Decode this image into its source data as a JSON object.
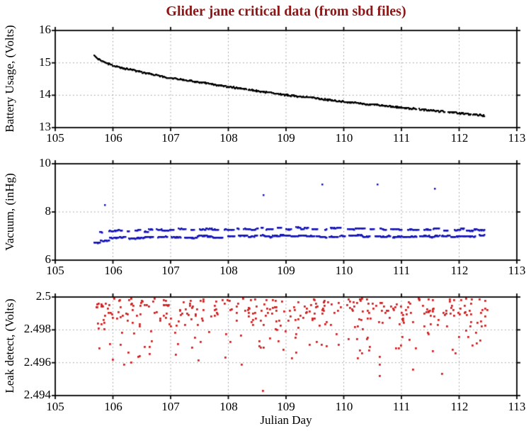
{
  "title": {
    "text": "Glider jane critical data (from sbd files)",
    "color": "#8b1717"
  },
  "x_axis": {
    "label": "Julian Day",
    "tick_labels": [
      "105",
      "106",
      "107",
      "108",
      "109",
      "110",
      "111",
      "112",
      "113"
    ],
    "range": [
      105,
      113
    ]
  },
  "style": {
    "background": "#ffffff",
    "axis_color": "#000000",
    "grid_color": "#999999",
    "text_color": "#000000"
  },
  "chart_data": [
    {
      "type": "scatter",
      "name": "battery-usage",
      "ylabel": "Battery Usage, (Volts)",
      "y_tick_labels": [
        "16",
        "15",
        "14",
        "13"
      ],
      "y_ticks": [
        16,
        15,
        14,
        13
      ],
      "ylim": [
        13,
        16
      ],
      "xlim": [
        105,
        113
      ],
      "x_grid": [
        106,
        107,
        108,
        109,
        110,
        111,
        112
      ],
      "y_grid": [
        14,
        15
      ],
      "grid": true,
      "legend": "none",
      "marker_color": "#000000",
      "marker_size": 2.2,
      "seed": 7,
      "series": [
        {
          "name": "battery-voltage",
          "style": "runs",
          "x_start": 105.68,
          "x_end": 112.45,
          "step": 0.012,
          "run_len": [
            6,
            14
          ],
          "gap_prob": 0.1,
          "gap_len": [
            2,
            5
          ],
          "flat": false,
          "noise": 0.022,
          "anchors": [
            [
              105.68,
              15.22
            ],
            [
              105.75,
              15.12
            ],
            [
              105.85,
              15.02
            ],
            [
              106,
              14.92
            ],
            [
              106.2,
              14.83
            ],
            [
              106.4,
              14.75
            ],
            [
              106.6,
              14.67
            ],
            [
              106.8,
              14.6
            ],
            [
              107,
              14.53
            ],
            [
              107.3,
              14.45
            ],
            [
              107.6,
              14.37
            ],
            [
              108,
              14.26
            ],
            [
              108.4,
              14.16
            ],
            [
              108.8,
              14.06
            ],
            [
              109,
              14.0
            ],
            [
              109.4,
              13.93
            ],
            [
              109.8,
              13.84
            ],
            [
              110.2,
              13.76
            ],
            [
              110.6,
              13.69
            ],
            [
              111,
              13.62
            ],
            [
              111.4,
              13.55
            ],
            [
              111.8,
              13.48
            ],
            [
              112.1,
              13.43
            ],
            [
              112.45,
              13.37
            ]
          ]
        }
      ],
      "outliers": []
    },
    {
      "type": "scatter",
      "name": "vacuum",
      "ylabel": "Vacuum, (inHg)",
      "y_tick_labels": [
        "10",
        "8",
        "6"
      ],
      "y_ticks": [
        10,
        8,
        6
      ],
      "ylim": [
        6,
        10
      ],
      "xlim": [
        105,
        113
      ],
      "x_grid": [
        106,
        107,
        108,
        109,
        110,
        111,
        112
      ],
      "y_grid": [
        8
      ],
      "grid": true,
      "legend": "none",
      "marker_color": "#1414b4",
      "marker_size": 2.5,
      "seed": 11,
      "series": [
        {
          "name": "vacuum-lower-band",
          "style": "runs",
          "x_start": 105.68,
          "x_end": 112.45,
          "step": 0.014,
          "run_len": [
            4,
            12
          ],
          "gap_prob": 0.3,
          "gap_len": [
            2,
            6
          ],
          "flat": true,
          "noise": 0.045,
          "anchors": [
            [
              105.68,
              6.72
            ],
            [
              105.8,
              6.82
            ],
            [
              105.95,
              6.9
            ],
            [
              106.2,
              6.93
            ],
            [
              106.6,
              6.95
            ],
            [
              107,
              6.96
            ],
            [
              108,
              6.98
            ],
            [
              109,
              7.0
            ],
            [
              110,
              7.0
            ],
            [
              111,
              6.99
            ],
            [
              112.45,
              7.0
            ]
          ]
        },
        {
          "name": "vacuum-upper-band",
          "style": "runs",
          "x_start": 105.78,
          "x_end": 112.45,
          "step": 0.016,
          "run_len": [
            3,
            8
          ],
          "gap_prob": 0.5,
          "gap_len": [
            2,
            7
          ],
          "flat": true,
          "noise": 0.05,
          "anchors": [
            [
              105.78,
              7.15
            ],
            [
              106,
              7.2
            ],
            [
              106.5,
              7.22
            ],
            [
              107,
              7.25
            ],
            [
              107.5,
              7.26
            ],
            [
              108,
              7.28
            ],
            [
              108.5,
              7.3
            ],
            [
              109,
              7.32
            ],
            [
              109.5,
              7.33
            ],
            [
              110,
              7.29
            ],
            [
              110.5,
              7.27
            ],
            [
              111,
              7.28
            ],
            [
              111.5,
              7.27
            ],
            [
              112,
              7.26
            ],
            [
              112.45,
              7.22
            ]
          ]
        }
      ],
      "outliers": [
        [
          105.86,
          8.28
        ],
        [
          108.61,
          8.7
        ],
        [
          109.63,
          9.13
        ],
        [
          110.58,
          9.13
        ],
        [
          111.58,
          8.95
        ]
      ]
    },
    {
      "type": "scatter",
      "name": "leak-detect",
      "ylabel": "Leak detect, (Volts)",
      "y_tick_labels": [
        "2.5",
        "2.498",
        "2.496",
        "2.494"
      ],
      "y_ticks": [
        2.5,
        2.498,
        2.496,
        2.494
      ],
      "ylim": [
        2.494,
        2.5
      ],
      "xlim": [
        105,
        113
      ],
      "x_grid": [
        106,
        107,
        108,
        109,
        110,
        111,
        112
      ],
      "y_grid": [
        2.496,
        2.498
      ],
      "grid": true,
      "legend": "none",
      "marker_color": "#cc2222",
      "marker_size": 2.8,
      "seed": 23,
      "series": [
        {
          "name": "leak-voltage",
          "style": "cloud",
          "n": 390,
          "x_range": [
            105.68,
            112.5
          ],
          "bands": [
            {
              "y": [
                2.499,
                2.4999
              ],
              "w": 0.54
            },
            {
              "y": [
                2.4982,
                2.499
              ],
              "w": 0.28
            },
            {
              "y": [
                2.4968,
                2.4982
              ],
              "w": 0.13
            },
            {
              "y": [
                2.4957,
                2.4968
              ],
              "w": 0.05
            }
          ]
        }
      ],
      "outliers": [
        [
          106.0,
          2.4962
        ],
        [
          106.32,
          2.496
        ],
        [
          108.6,
          2.4943
        ],
        [
          110.62,
          2.4952
        ],
        [
          111.2,
          2.4956
        ],
        [
          111.7,
          2.4953
        ]
      ]
    }
  ]
}
